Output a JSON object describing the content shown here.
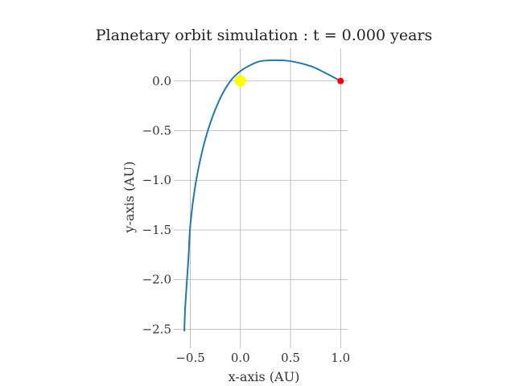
{
  "chart_data": {
    "type": "line",
    "title": "Planetary orbit simulation : t = 0.000 years",
    "xlabel": "x-axis (AU)",
    "ylabel": "y-axis (AU)",
    "xlim": [
      -0.625,
      1.07
    ],
    "ylim": [
      -2.65,
      0.33
    ],
    "grid": true,
    "x_ticks": [
      -0.5,
      0.0,
      0.5,
      1.0
    ],
    "x_tick_labels": [
      "−0.5",
      "0.0",
      "0.5",
      "1.0"
    ],
    "y_ticks": [
      0.0,
      -0.5,
      -1.0,
      -1.5,
      -2.0,
      -2.5
    ],
    "y_tick_labels": [
      "0.0",
      "−0.5",
      "−1.0",
      "−1.5",
      "−2.0",
      "−2.5"
    ],
    "series": [
      {
        "x": [
          1.0,
          0.85,
          0.7,
          0.5,
          0.35,
          0.2,
          0.1,
          0.0,
          -0.1,
          -0.2,
          -0.3,
          -0.38,
          -0.45,
          -0.5,
          -0.52,
          -0.55,
          -0.56
        ],
        "y": [
          0.0,
          0.08,
          0.15,
          0.2,
          0.21,
          0.2,
          0.16,
          0.1,
          0.0,
          -0.17,
          -0.42,
          -0.7,
          -1.05,
          -1.45,
          -1.8,
          -2.25,
          -2.52
        ],
        "color": "#1f77b4"
      }
    ],
    "points": [
      {
        "x": 0.0,
        "y": 0.0,
        "color": "#ffff00",
        "marker_size": "large"
      },
      {
        "x": 1.0,
        "y": 0.0,
        "color": "#ff0000",
        "marker_size": "small"
      }
    ]
  }
}
